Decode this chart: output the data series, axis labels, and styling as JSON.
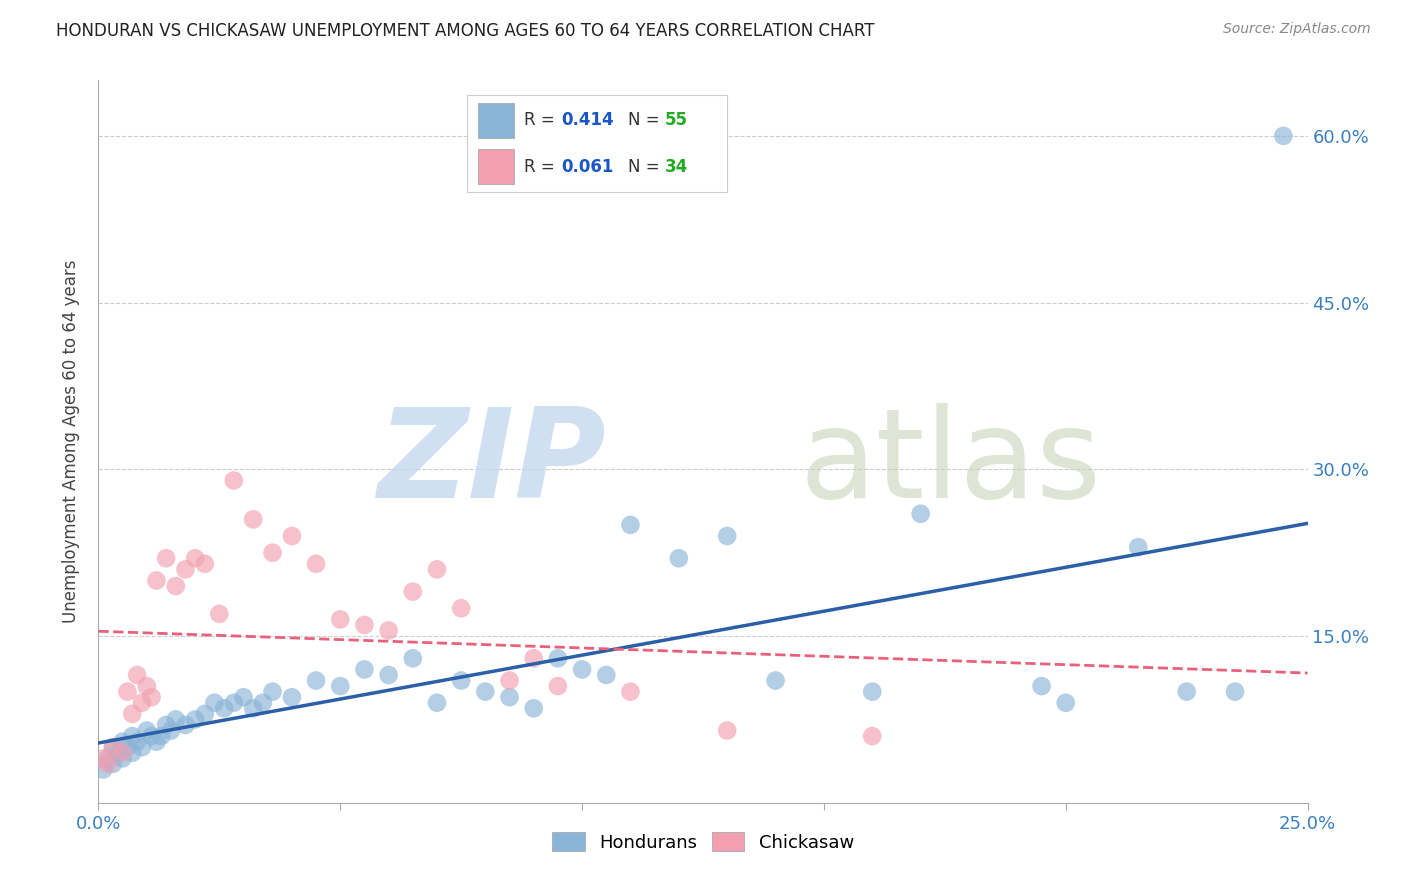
{
  "title": "HONDURAN VS CHICKASAW UNEMPLOYMENT AMONG AGES 60 TO 64 YEARS CORRELATION CHART",
  "source": "Source: ZipAtlas.com",
  "ylabel": "Unemployment Among Ages 60 to 64 years",
  "xlim": [
    0.0,
    0.25
  ],
  "ylim": [
    0.0,
    0.65
  ],
  "xticks": [
    0.0,
    0.05,
    0.1,
    0.15,
    0.2,
    0.25
  ],
  "xtick_labels": [
    "0.0%",
    "",
    "",
    "",
    "",
    "25.0%"
  ],
  "ytick_vals": [
    0.0,
    0.15,
    0.3,
    0.45,
    0.6
  ],
  "ytick_labels_right": [
    "",
    "15.0%",
    "30.0%",
    "45.0%",
    "60.0%"
  ],
  "honduran_color": "#8ab4d8",
  "chickasaw_color": "#f2a0b0",
  "honduran_line_color": "#2b5fa8",
  "chickasaw_line_color": "#e8607a",
  "chickasaw_line_style": "-",
  "R_honduran": 0.414,
  "N_honduran": 55,
  "R_chickasaw": 0.061,
  "N_chickasaw": 34,
  "legend_R_color": "#1a56c8",
  "legend_N_color": "#22aa22",
  "background_color": "#ffffff",
  "grid_color": "#cccccc",
  "honduran_x": [
    0.001,
    0.002,
    0.003,
    0.003,
    0.004,
    0.005,
    0.005,
    0.006,
    0.007,
    0.007,
    0.008,
    0.009,
    0.01,
    0.011,
    0.012,
    0.013,
    0.014,
    0.015,
    0.016,
    0.018,
    0.02,
    0.022,
    0.024,
    0.026,
    0.028,
    0.03,
    0.032,
    0.034,
    0.036,
    0.04,
    0.045,
    0.05,
    0.055,
    0.06,
    0.065,
    0.07,
    0.075,
    0.08,
    0.085,
    0.09,
    0.095,
    0.1,
    0.105,
    0.11,
    0.12,
    0.13,
    0.14,
    0.16,
    0.17,
    0.195,
    0.2,
    0.215,
    0.225,
    0.235,
    0.245
  ],
  "honduran_y": [
    0.03,
    0.04,
    0.035,
    0.05,
    0.045,
    0.04,
    0.055,
    0.05,
    0.045,
    0.06,
    0.055,
    0.05,
    0.065,
    0.06,
    0.055,
    0.06,
    0.07,
    0.065,
    0.075,
    0.07,
    0.075,
    0.08,
    0.09,
    0.085,
    0.09,
    0.095,
    0.085,
    0.09,
    0.1,
    0.095,
    0.11,
    0.105,
    0.12,
    0.115,
    0.13,
    0.09,
    0.11,
    0.1,
    0.095,
    0.085,
    0.13,
    0.12,
    0.115,
    0.25,
    0.22,
    0.24,
    0.11,
    0.1,
    0.26,
    0.105,
    0.09,
    0.23,
    0.1,
    0.1,
    0.6
  ],
  "chickasaw_x": [
    0.001,
    0.002,
    0.003,
    0.005,
    0.006,
    0.007,
    0.008,
    0.009,
    0.01,
    0.011,
    0.012,
    0.014,
    0.016,
    0.018,
    0.02,
    0.022,
    0.025,
    0.028,
    0.032,
    0.036,
    0.04,
    0.045,
    0.05,
    0.055,
    0.06,
    0.065,
    0.07,
    0.075,
    0.085,
    0.09,
    0.095,
    0.11,
    0.13,
    0.16
  ],
  "chickasaw_y": [
    0.04,
    0.035,
    0.05,
    0.045,
    0.1,
    0.08,
    0.115,
    0.09,
    0.105,
    0.095,
    0.2,
    0.22,
    0.195,
    0.21,
    0.22,
    0.215,
    0.17,
    0.29,
    0.255,
    0.225,
    0.24,
    0.215,
    0.165,
    0.16,
    0.155,
    0.19,
    0.21,
    0.175,
    0.11,
    0.13,
    0.105,
    0.1,
    0.065,
    0.06
  ]
}
